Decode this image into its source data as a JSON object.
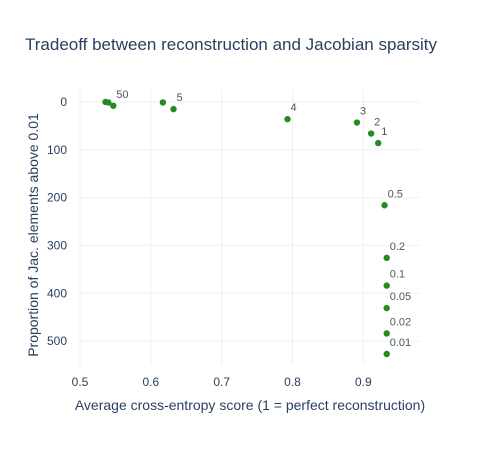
{
  "chart_data": {
    "type": "scatter",
    "title": "Tradeoff between reconstruction and Jacobian sparsity",
    "xlabel": "Average cross-entropy score (1 = perfect reconstruction)",
    "ylabel": "Proportion of Jac. elements above 0.01",
    "xlim": [
      0.5,
      0.98
    ],
    "ylim": [
      550,
      -25
    ],
    "y_reversed": true,
    "grid": true,
    "x_ticks": [
      0.5,
      0.6,
      0.7,
      0.8,
      0.9
    ],
    "y_ticks": [
      0,
      100,
      200,
      300,
      400,
      500
    ],
    "marker_color": "#228b22",
    "points": [
      {
        "x": 0.536,
        "y": 0
      },
      {
        "x": 0.54,
        "y": 1
      },
      {
        "x": 0.547,
        "y": 8,
        "label": "50"
      },
      {
        "x": 0.617,
        "y": 1
      },
      {
        "x": 0.632,
        "y": 15,
        "label": "5"
      },
      {
        "x": 0.793,
        "y": 36,
        "label": "4"
      },
      {
        "x": 0.891,
        "y": 43,
        "label": "3"
      },
      {
        "x": 0.911,
        "y": 66,
        "label": "2"
      },
      {
        "x": 0.921,
        "y": 86,
        "label": "1"
      },
      {
        "x": 0.93,
        "y": 216,
        "label": "0.5"
      },
      {
        "x": 0.933,
        "y": 326,
        "label": "0.2"
      },
      {
        "x": 0.933,
        "y": 384,
        "label": "0.1"
      },
      {
        "x": 0.933,
        "y": 431,
        "label": "0.05"
      },
      {
        "x": 0.933,
        "y": 484,
        "label": "0.02"
      },
      {
        "x": 0.933,
        "y": 527,
        "label": "0.01"
      }
    ]
  }
}
